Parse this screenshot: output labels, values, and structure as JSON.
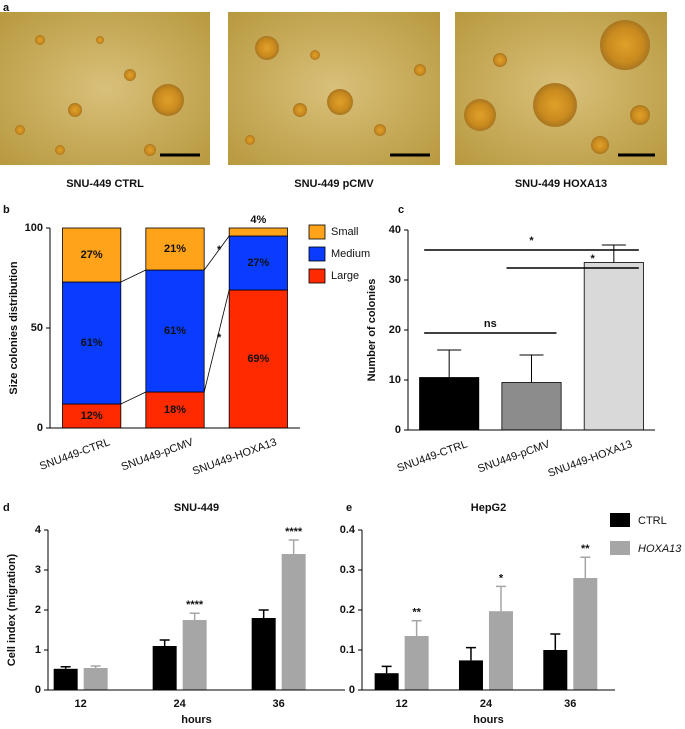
{
  "figure": {
    "panel_labels": [
      "a",
      "b",
      "c",
      "d",
      "e"
    ],
    "images": [
      {
        "caption": "SNU-449 CTRL"
      },
      {
        "caption": "SNU-449 pCMV"
      },
      {
        "caption": "SNU-449 HOXA13"
      }
    ]
  },
  "chart_data": [
    {
      "type": "stacked_bar",
      "ylabel": "Size colonies distribution",
      "categories": [
        "SNU449-CTRL",
        "SNU449-pCMV",
        "SNU449-HOXA13"
      ],
      "series": [
        {
          "name": "Large",
          "color": "#ff2a00",
          "values": [
            12,
            18,
            69
          ],
          "value_labels": [
            "12%",
            "18%",
            "69%"
          ]
        },
        {
          "name": "Medium",
          "color": "#0a3cff",
          "values": [
            61,
            61,
            27
          ],
          "value_labels": [
            "61%",
            "61%",
            "27%"
          ]
        },
        {
          "name": "Small",
          "color": "#ffa31a",
          "values": [
            27,
            21,
            4
          ],
          "value_labels": [
            "27%",
            "21%",
            "4%"
          ]
        }
      ],
      "ylim": [
        0,
        100
      ],
      "yticks": [
        0,
        50,
        100
      ],
      "annotations": [
        "*",
        "*"
      ]
    },
    {
      "type": "bar",
      "ylabel": "Number of colonies",
      "categories": [
        "SNU449-CTRL",
        "SNU449-pCMV",
        "SNU449-HOXA13"
      ],
      "values": [
        10.5,
        9.5,
        33.5
      ],
      "errors": [
        5.5,
        5.5,
        3.5
      ],
      "colors": [
        "#000000",
        "#8c8c8c",
        "#d9d9d9"
      ],
      "ylim": [
        0,
        40
      ],
      "yticks": [
        0,
        10,
        20,
        30,
        40
      ],
      "annotations": [
        "ns",
        "*",
        "*"
      ]
    },
    {
      "type": "grouped_bar",
      "title": "SNU-449",
      "xlabel": "hours",
      "ylabel": "Cell index (migration)",
      "categories": [
        "12",
        "24",
        "36"
      ],
      "series": [
        {
          "name": "CTRL",
          "color": "#000000",
          "values": [
            0.53,
            1.1,
            1.8
          ],
          "errors": [
            0.05,
            0.15,
            0.2
          ],
          "significance": [
            null,
            null,
            null
          ]
        },
        {
          "name": "HOXA13",
          "color": "#a6a6a6",
          "values": [
            0.55,
            1.75,
            3.4
          ],
          "errors": [
            0.05,
            0.17,
            0.35
          ],
          "significance": [
            null,
            "****",
            "****"
          ]
        }
      ],
      "ylim": [
        0,
        4
      ],
      "yticks": [
        0,
        1,
        2,
        3,
        4
      ]
    },
    {
      "type": "grouped_bar",
      "title": "HepG2",
      "xlabel": "hours",
      "categories": [
        "12",
        "24",
        "36"
      ],
      "series": [
        {
          "name": "CTRL",
          "color": "#000000",
          "values": [
            0.042,
            0.074,
            0.1
          ],
          "errors": [
            0.017,
            0.032,
            0.04
          ],
          "significance": [
            null,
            null,
            null
          ]
        },
        {
          "name": "HOXA13",
          "color": "#a6a6a6",
          "values": [
            0.135,
            0.197,
            0.28
          ],
          "errors": [
            0.038,
            0.062,
            0.052
          ],
          "significance": [
            "**",
            "*",
            "**"
          ]
        }
      ],
      "ylim": [
        0,
        0.4
      ],
      "yticks": [
        0,
        0.1,
        0.2,
        0.3,
        0.4
      ],
      "legend": "outside-right"
    }
  ]
}
